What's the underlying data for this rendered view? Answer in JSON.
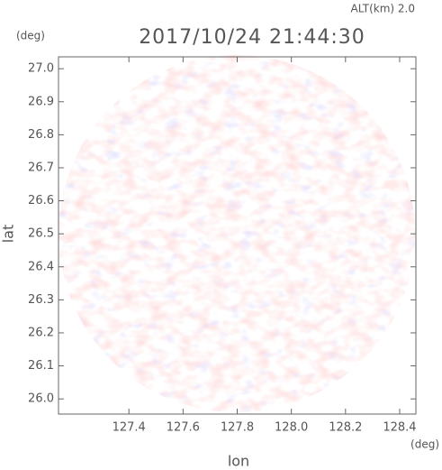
{
  "chart_data": {
    "type": "radar-ppi",
    "title": "2017/10/24 21:44:30",
    "subtitle": "ALT(km) 2.0",
    "xlabel": "lon",
    "ylabel": "lat",
    "x_unit": "(deg)",
    "y_unit": "(deg)",
    "xlim": [
      127.14,
      128.46
    ],
    "ylim": [
      25.954,
      27.036
    ],
    "xticks": [
      127.4,
      127.6,
      127.8,
      {
        "value": 128,
        "label": "128.0"
      },
      128.2,
      128.4
    ],
    "yticks": [
      {
        "value": 26,
        "label": "26.0"
      },
      26.1,
      26.2,
      26.3,
      26.4,
      26.5,
      26.6,
      26.7,
      26.8,
      26.9,
      {
        "value": 27,
        "label": "27.0"
      }
    ],
    "grid": false
  }
}
